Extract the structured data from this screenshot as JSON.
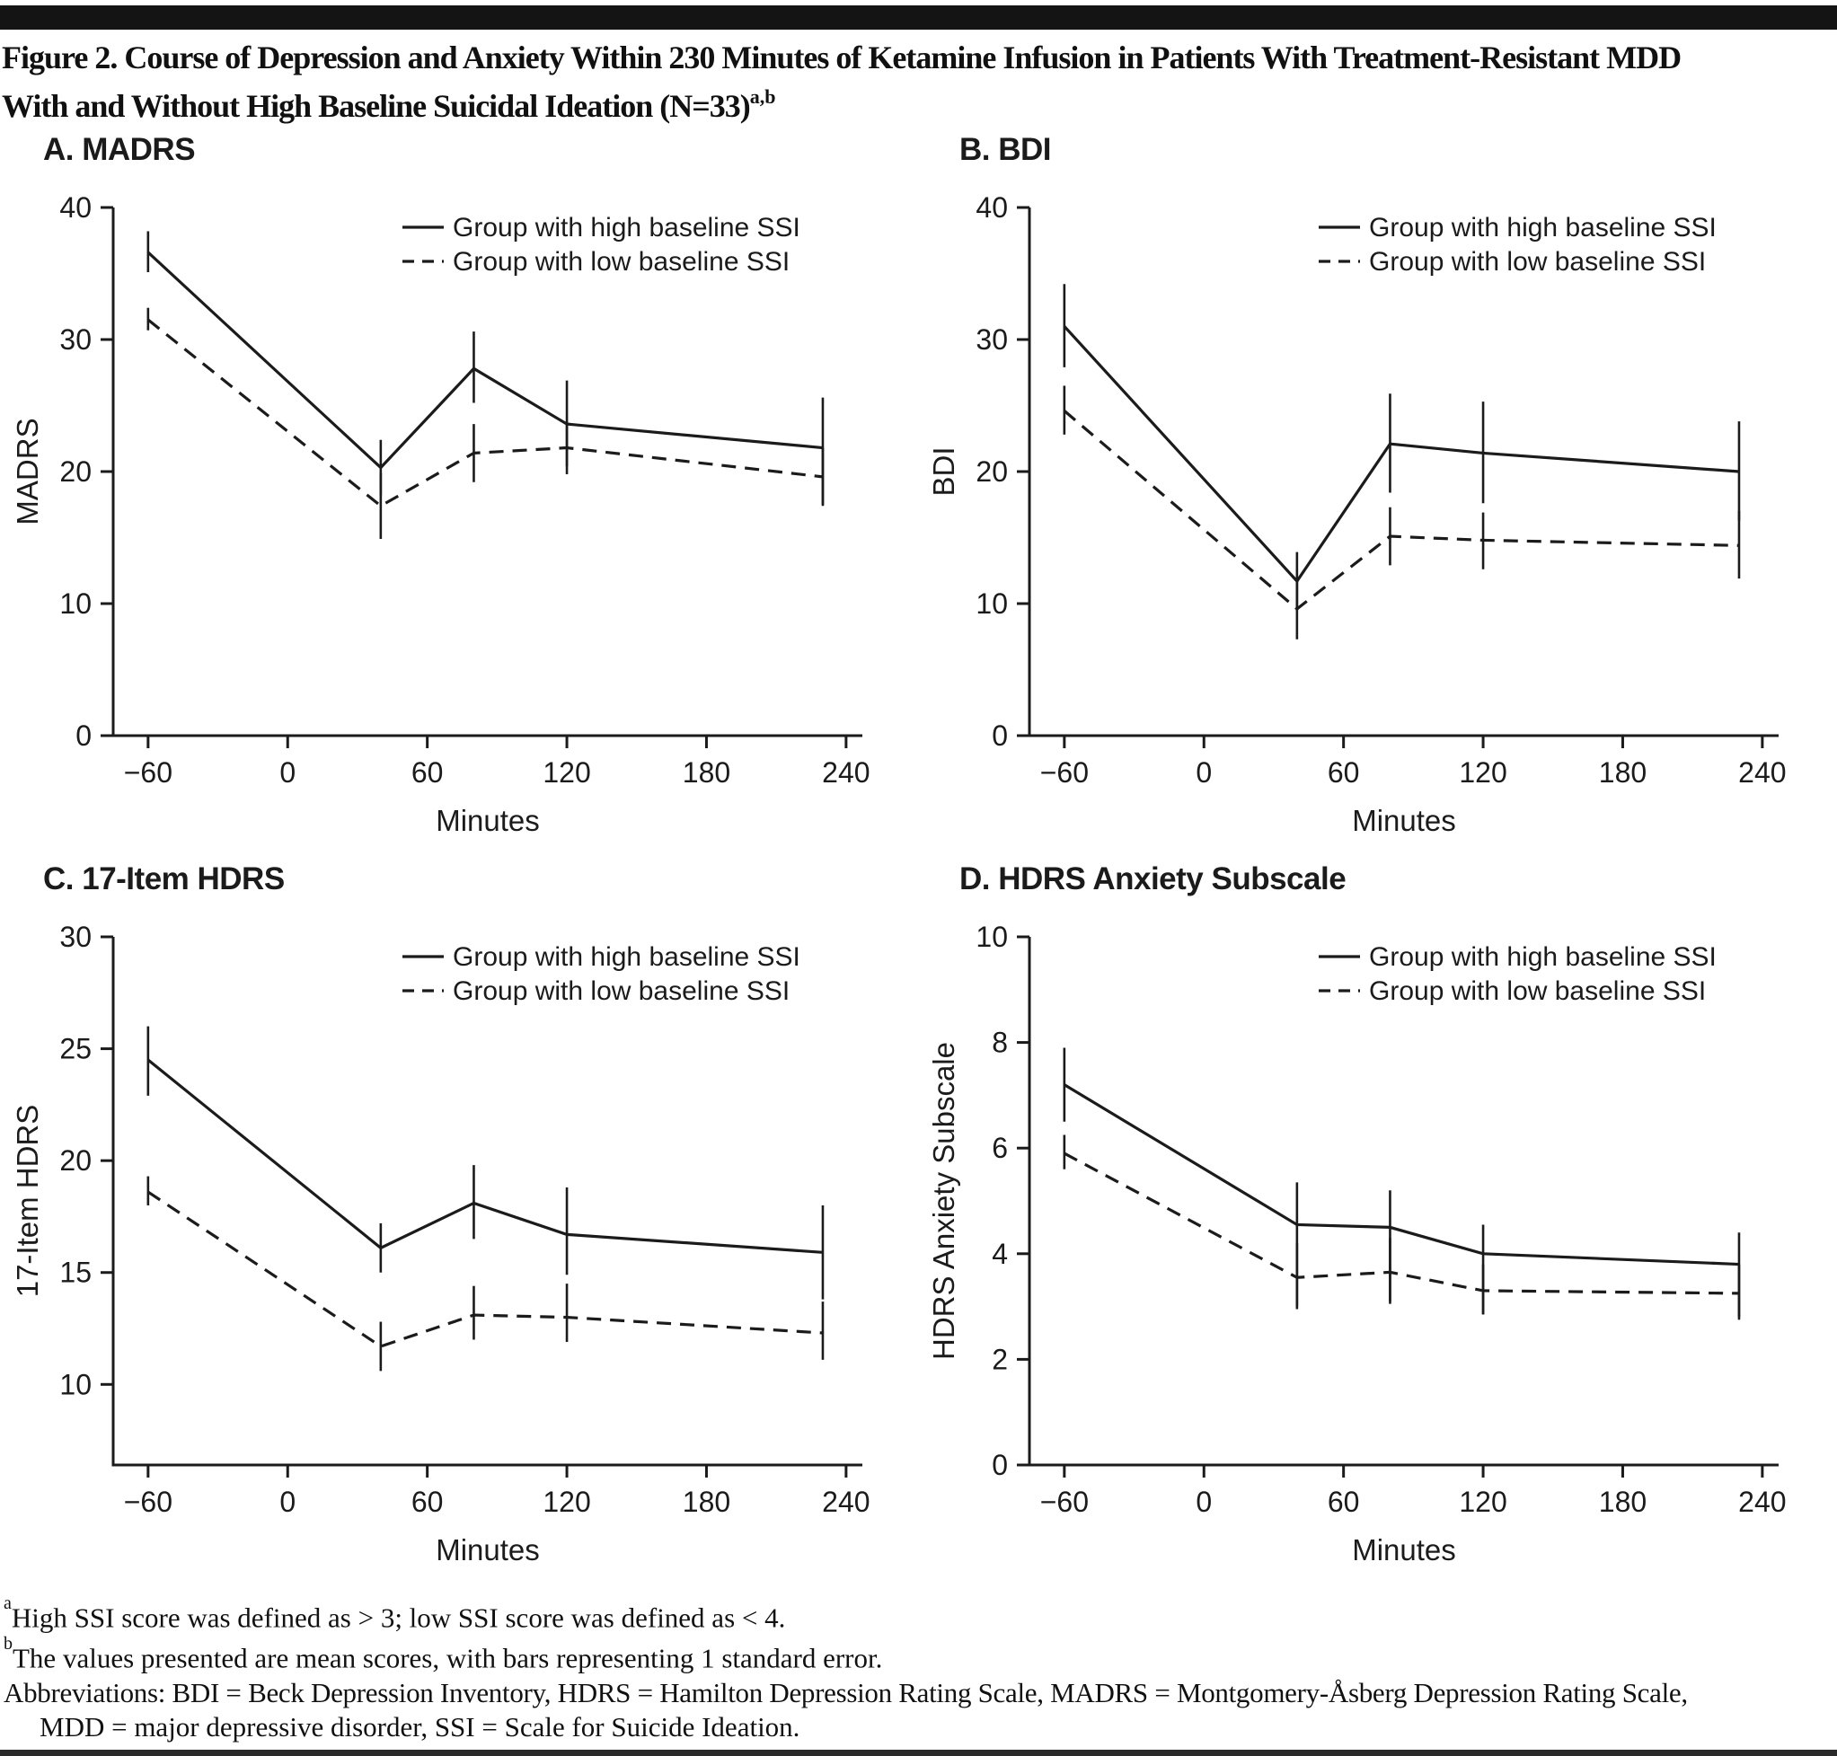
{
  "page": {
    "title_line1": "Figure 2. Course of Depression and Anxiety Within 230 Minutes of Ketamine Infusion in Patients With Treatment-Resistant MDD",
    "title_line2": "With and Without High Baseline Suicidal Ideation (N=33)",
    "title_sup": "a,b"
  },
  "legend": {
    "high": "Group with high baseline SSI",
    "low": "Group with low baseline SSI"
  },
  "xlabel": "Minutes",
  "footnotes": {
    "a_sup": "a",
    "a_text": "High SSI score was defined as > 3; low SSI score was defined as < 4.",
    "b_sup": "b",
    "b_text": "The values presented are mean scores, with bars representing 1 standard error.",
    "abbr_line1": "Abbreviations: BDI = Beck Depression Inventory, HDRS = Hamilton Depression Rating Scale, MADRS = Montgomery-Åsberg Depression Rating Scale,",
    "abbr_line2": "MDD = major depressive disorder, SSI = Scale for Suicide Ideation."
  },
  "ink_color": "#1b1b1b",
  "chart_data": [
    {
      "id": "A",
      "type": "line",
      "title": "A. MADRS",
      "ylabel": "MADRS",
      "xlabel": "Minutes",
      "ylim": [
        0,
        40
      ],
      "yticks": [
        0,
        10,
        20,
        30,
        40
      ],
      "xlim": [
        -75,
        247
      ],
      "xticks": [
        -60,
        0,
        60,
        120,
        180,
        240
      ],
      "legend_position": "top-right",
      "series": [
        {
          "name": "Group with high baseline SSI",
          "style": "solid",
          "x": [
            -60,
            40,
            80,
            120,
            230
          ],
          "y": [
            36.6,
            20.3,
            27.8,
            23.6,
            21.8
          ],
          "err_lo": [
            35.1,
            18.2,
            25.2,
            20.4,
            17.5
          ],
          "err_hi": [
            38.2,
            22.4,
            30.6,
            26.9,
            25.6
          ]
        },
        {
          "name": "Group with low baseline SSI",
          "style": "dashed",
          "x": [
            -60,
            40,
            80,
            120,
            230
          ],
          "y": [
            31.5,
            17.4,
            21.4,
            21.8,
            19.6
          ],
          "err_lo": [
            30.7,
            14.9,
            19.2,
            19.8,
            17.4
          ],
          "err_hi": [
            32.4,
            19.9,
            23.6,
            23.8,
            21.8
          ]
        }
      ]
    },
    {
      "id": "B",
      "type": "line",
      "title": "B. BDI",
      "ylabel": "BDI",
      "xlabel": "Minutes",
      "ylim": [
        0,
        40
      ],
      "yticks": [
        0,
        10,
        20,
        30,
        40
      ],
      "xlim": [
        -75,
        247
      ],
      "xticks": [
        -60,
        0,
        60,
        120,
        180,
        240
      ],
      "legend_position": "top-right",
      "series": [
        {
          "name": "Group with high baseline SSI",
          "style": "solid",
          "x": [
            -60,
            40,
            80,
            120,
            230
          ],
          "y": [
            31.0,
            11.7,
            22.1,
            21.4,
            20.0
          ],
          "err_lo": [
            27.9,
            9.5,
            18.4,
            17.6,
            16.3
          ],
          "err_hi": [
            34.2,
            13.9,
            25.9,
            25.3,
            23.8
          ]
        },
        {
          "name": "Group with low baseline SSI",
          "style": "dashed",
          "x": [
            -60,
            40,
            80,
            120,
            230
          ],
          "y": [
            24.6,
            9.6,
            15.1,
            14.8,
            14.4
          ],
          "err_lo": [
            22.8,
            7.3,
            12.9,
            12.6,
            11.9
          ],
          "err_hi": [
            26.5,
            11.9,
            17.3,
            16.9,
            17.0
          ]
        }
      ]
    },
    {
      "id": "C",
      "type": "line",
      "title": "C. 17-Item HDRS",
      "ylabel": "17-Item HDRS",
      "xlabel": "Minutes",
      "ylim": [
        6.4,
        30
      ],
      "yticks": [
        10,
        15,
        20,
        25,
        30
      ],
      "xlim": [
        -75,
        247
      ],
      "xticks": [
        -60,
        0,
        60,
        120,
        180,
        240
      ],
      "legend_position": "top-right",
      "series": [
        {
          "name": "Group with high baseline SSI",
          "style": "solid",
          "x": [
            -60,
            40,
            80,
            120,
            230
          ],
          "y": [
            24.5,
            16.1,
            18.1,
            16.7,
            15.9
          ],
          "err_lo": [
            22.9,
            15.0,
            16.5,
            14.9,
            13.8
          ],
          "err_hi": [
            26.0,
            17.2,
            19.8,
            18.8,
            18.0
          ]
        },
        {
          "name": "Group with low baseline SSI",
          "style": "dashed",
          "x": [
            -60,
            40,
            80,
            120,
            230
          ],
          "y": [
            18.6,
            11.7,
            13.1,
            13.0,
            12.3
          ],
          "err_lo": [
            18.0,
            10.6,
            12.0,
            11.9,
            11.1
          ],
          "err_hi": [
            19.3,
            12.8,
            14.4,
            14.5,
            13.7
          ]
        }
      ]
    },
    {
      "id": "D",
      "type": "line",
      "title": "D. HDRS Anxiety Subscale",
      "ylabel": "HDRS Anxiety Subscale",
      "xlabel": "Minutes",
      "ylim": [
        0,
        10
      ],
      "yticks": [
        0,
        2,
        4,
        6,
        8,
        10
      ],
      "xlim": [
        -75,
        247
      ],
      "xticks": [
        -60,
        0,
        60,
        120,
        180,
        240
      ],
      "legend_position": "top-right",
      "series": [
        {
          "name": "Group with high baseline SSI",
          "style": "solid",
          "x": [
            -60,
            40,
            80,
            120,
            230
          ],
          "y": [
            7.2,
            4.55,
            4.5,
            4.0,
            3.8
          ],
          "err_lo": [
            6.5,
            3.0,
            3.1,
            2.85,
            2.8
          ],
          "err_hi": [
            7.9,
            5.35,
            5.2,
            4.55,
            4.4
          ]
        },
        {
          "name": "Group with low baseline SSI",
          "style": "dashed",
          "x": [
            -60,
            40,
            80,
            120,
            230
          ],
          "y": [
            5.9,
            3.55,
            3.65,
            3.3,
            3.25
          ],
          "err_lo": [
            5.6,
            2.95,
            3.05,
            2.85,
            2.75
          ],
          "err_hi": [
            6.25,
            4.2,
            4.3,
            3.8,
            3.8
          ]
        }
      ]
    }
  ]
}
